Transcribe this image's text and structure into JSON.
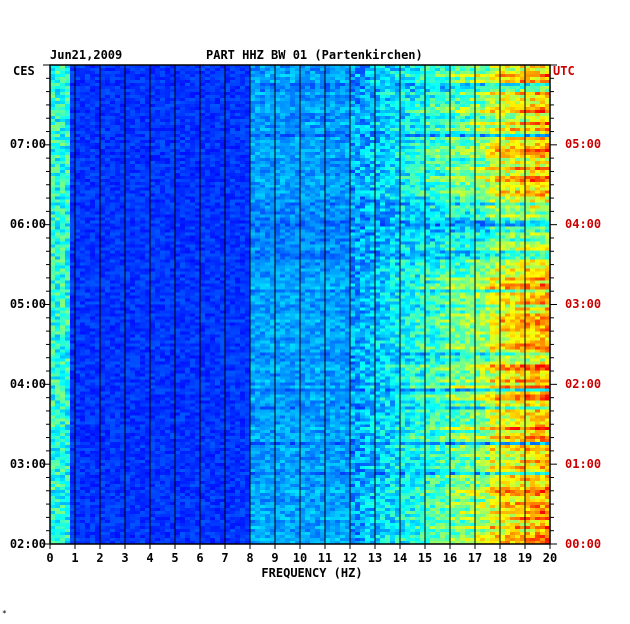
{
  "chart_data": {
    "type": "heatmap",
    "title": "PART HHZ BW 01 (Partenkirchen)",
    "date": "Jun21,2009",
    "xlabel": "FREQUENCY (HZ)",
    "xlim": [
      0,
      20
    ],
    "x_ticks": [
      "0",
      "1",
      "2",
      "3",
      "4",
      "5",
      "6",
      "7",
      "8",
      "9",
      "10",
      "11",
      "12",
      "13",
      "14",
      "15",
      "16",
      "17",
      "18",
      "19",
      "20"
    ],
    "left_axis_label": "CES",
    "right_axis_label": "UTC",
    "left_time_labels": [
      "07:00",
      "06:00",
      "05:00",
      "04:00",
      "03:00",
      "02:00"
    ],
    "right_time_labels": [
      "05:00",
      "04:00",
      "03:00",
      "02:00",
      "01:00",
      "00:00"
    ],
    "time_range_hours": 6.0,
    "color_scale": [
      "#00007f",
      "#0000ff",
      "#0080ff",
      "#00ffff",
      "#80ff80",
      "#ffff00",
      "#ff8000",
      "#ff0000"
    ],
    "corner_mark": "*",
    "colors": {
      "left_labels": "#000000",
      "right_labels": "#cc0000",
      "axis": "#000000"
    }
  }
}
